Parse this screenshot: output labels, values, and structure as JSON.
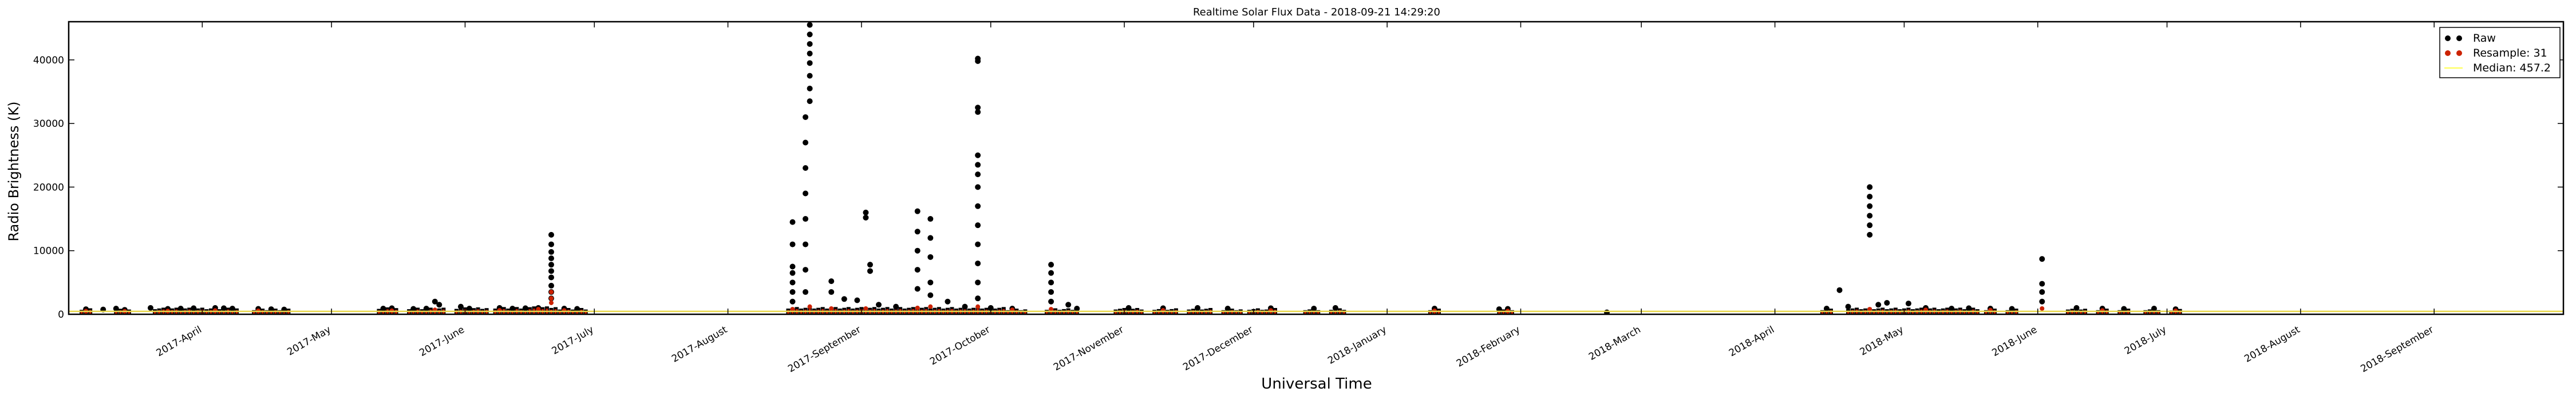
{
  "chart_data": {
    "type": "scatter",
    "title": "Realtime Solar Flux Data - 2018-09-21 14:29:20",
    "xlabel": "Universal Time",
    "ylabel": "Radio Brightness (K)",
    "xlim": [
      "2017-03-01",
      "2018-10-01"
    ],
    "ylim": [
      0,
      46000
    ],
    "y_ticks": [
      0,
      10000,
      20000,
      30000,
      40000
    ],
    "x_ticks": [
      {
        "date": "2017-04-01",
        "label": "2017-April"
      },
      {
        "date": "2017-05-01",
        "label": "2017-May"
      },
      {
        "date": "2017-06-01",
        "label": "2017-June"
      },
      {
        "date": "2017-07-01",
        "label": "2017-July"
      },
      {
        "date": "2017-08-01",
        "label": "2017-August"
      },
      {
        "date": "2017-09-01",
        "label": "2017-September"
      },
      {
        "date": "2017-10-01",
        "label": "2017-October"
      },
      {
        "date": "2017-11-01",
        "label": "2017-November"
      },
      {
        "date": "2017-12-01",
        "label": "2017-December"
      },
      {
        "date": "2018-01-01",
        "label": "2018-January"
      },
      {
        "date": "2018-02-01",
        "label": "2018-February"
      },
      {
        "date": "2018-03-01",
        "label": "2018-March"
      },
      {
        "date": "2018-04-01",
        "label": "2018-April"
      },
      {
        "date": "2018-05-01",
        "label": "2018-May"
      },
      {
        "date": "2018-06-01",
        "label": "2018-June"
      },
      {
        "date": "2018-07-01",
        "label": "2018-July"
      },
      {
        "date": "2018-08-01",
        "label": "2018-August"
      },
      {
        "date": "2018-09-01",
        "label": "2018-September"
      }
    ],
    "legend": {
      "location": "top-right",
      "entries": [
        {
          "label": "Raw",
          "color": "#000000"
        },
        {
          "label": "Resample: 31",
          "color": "#cc2200"
        },
        {
          "label": "Median: 457.2",
          "color": "#ffff66"
        }
      ]
    },
    "median": 457.2,
    "series": [
      {
        "name": "Raw",
        "color": "#000000",
        "marker": "dot",
        "points": [
          [
            "2017-03-05",
            800
          ],
          [
            "2017-03-09",
            750
          ],
          [
            "2017-03-12",
            900
          ],
          [
            "2017-03-14",
            700
          ],
          [
            "2017-03-20",
            1000
          ],
          [
            "2017-03-24",
            850
          ],
          [
            "2017-03-27",
            900
          ],
          [
            "2017-03-30",
            950
          ],
          [
            "2017-04-04",
            1000
          ],
          [
            "2017-04-06",
            950
          ],
          [
            "2017-04-08",
            900
          ],
          [
            "2017-04-14",
            850
          ],
          [
            "2017-04-17",
            800
          ],
          [
            "2017-04-20",
            750
          ],
          [
            "2017-05-13",
            900
          ],
          [
            "2017-05-15",
            950
          ],
          [
            "2017-05-20",
            850
          ],
          [
            "2017-05-23",
            900
          ],
          [
            "2017-05-25",
            2000
          ],
          [
            "2017-05-26",
            1500
          ],
          [
            "2017-05-31",
            1200
          ],
          [
            "2017-06-02",
            900
          ],
          [
            "2017-06-09",
            1000
          ],
          [
            "2017-06-12",
            900
          ],
          [
            "2017-06-15",
            950
          ],
          [
            "2017-06-18",
            1000
          ],
          [
            "2017-06-21",
            12500
          ],
          [
            "2017-06-21",
            11000
          ],
          [
            "2017-06-21",
            9800
          ],
          [
            "2017-06-21",
            8800
          ],
          [
            "2017-06-21",
            7800
          ],
          [
            "2017-06-21",
            6800
          ],
          [
            "2017-06-21",
            5800
          ],
          [
            "2017-06-21",
            4500
          ],
          [
            "2017-06-21",
            3500
          ],
          [
            "2017-06-21",
            2500
          ],
          [
            "2017-06-24",
            900
          ],
          [
            "2017-06-27",
            850
          ],
          [
            "2017-08-16",
            14500
          ],
          [
            "2017-08-16",
            11000
          ],
          [
            "2017-08-16",
            7500
          ],
          [
            "2017-08-16",
            6500
          ],
          [
            "2017-08-16",
            5000
          ],
          [
            "2017-08-16",
            3500
          ],
          [
            "2017-08-16",
            2000
          ],
          [
            "2017-08-20",
            45500
          ],
          [
            "2017-08-20",
            44000
          ],
          [
            "2017-08-20",
            42500
          ],
          [
            "2017-08-20",
            41000
          ],
          [
            "2017-08-20",
            39500
          ],
          [
            "2017-08-20",
            37500
          ],
          [
            "2017-08-20",
            35500
          ],
          [
            "2017-08-20",
            33500
          ],
          [
            "2017-08-19",
            31000
          ],
          [
            "2017-08-19",
            27000
          ],
          [
            "2017-08-19",
            23000
          ],
          [
            "2017-08-19",
            19000
          ],
          [
            "2017-08-19",
            15000
          ],
          [
            "2017-08-19",
            11000
          ],
          [
            "2017-08-19",
            7000
          ],
          [
            "2017-08-19",
            3500
          ],
          [
            "2017-08-25",
            5200
          ],
          [
            "2017-08-25",
            3500
          ],
          [
            "2017-08-28",
            2400
          ],
          [
            "2017-08-31",
            2200
          ],
          [
            "2017-09-02",
            16000
          ],
          [
            "2017-09-02",
            15200
          ],
          [
            "2017-09-03",
            7800
          ],
          [
            "2017-09-03",
            6800
          ],
          [
            "2017-09-05",
            1500
          ],
          [
            "2017-09-09",
            1200
          ],
          [
            "2017-09-14",
            16200
          ],
          [
            "2017-09-14",
            13000
          ],
          [
            "2017-09-14",
            10000
          ],
          [
            "2017-09-14",
            7000
          ],
          [
            "2017-09-14",
            4000
          ],
          [
            "2017-09-17",
            15000
          ],
          [
            "2017-09-17",
            12000
          ],
          [
            "2017-09-17",
            9000
          ],
          [
            "2017-09-17",
            5000
          ],
          [
            "2017-09-17",
            3000
          ],
          [
            "2017-09-21",
            2000
          ],
          [
            "2017-09-25",
            1200
          ],
          [
            "2017-09-28",
            40200
          ],
          [
            "2017-09-28",
            39800
          ],
          [
            "2017-09-28",
            32500
          ],
          [
            "2017-09-28",
            31800
          ],
          [
            "2017-09-28",
            25000
          ],
          [
            "2017-09-28",
            23500
          ],
          [
            "2017-09-28",
            22000
          ],
          [
            "2017-09-28",
            20000
          ],
          [
            "2017-09-28",
            17000
          ],
          [
            "2017-09-28",
            14000
          ],
          [
            "2017-09-28",
            11000
          ],
          [
            "2017-09-28",
            8000
          ],
          [
            "2017-09-28",
            5000
          ],
          [
            "2017-09-28",
            2500
          ],
          [
            "2017-10-01",
            1000
          ],
          [
            "2017-10-06",
            900
          ],
          [
            "2017-10-15",
            7800
          ],
          [
            "2017-10-15",
            6500
          ],
          [
            "2017-10-15",
            5000
          ],
          [
            "2017-10-15",
            3500
          ],
          [
            "2017-10-15",
            2000
          ],
          [
            "2017-10-19",
            1500
          ],
          [
            "2017-10-21",
            900
          ],
          [
            "2017-11-02",
            1000
          ],
          [
            "2017-11-10",
            950
          ],
          [
            "2017-11-18",
            1000
          ],
          [
            "2017-11-25",
            900
          ],
          [
            "2017-12-05",
            950
          ],
          [
            "2017-12-15",
            900
          ],
          [
            "2017-12-20",
            1000
          ],
          [
            "2018-01-12",
            900
          ],
          [
            "2018-01-27",
            800
          ],
          [
            "2018-01-29",
            850
          ],
          [
            "2018-02-21",
            300
          ],
          [
            "2018-04-13",
            900
          ],
          [
            "2018-04-16",
            3800
          ],
          [
            "2018-04-18",
            1200
          ],
          [
            "2018-04-23",
            20000
          ],
          [
            "2018-04-23",
            18500
          ],
          [
            "2018-04-23",
            17000
          ],
          [
            "2018-04-23",
            15500
          ],
          [
            "2018-04-23",
            14000
          ],
          [
            "2018-04-23",
            12500
          ],
          [
            "2018-04-25",
            1500
          ],
          [
            "2018-04-27",
            1800
          ],
          [
            "2018-05-02",
            1700
          ],
          [
            "2018-05-06",
            1000
          ],
          [
            "2018-05-12",
            900
          ],
          [
            "2018-05-16",
            950
          ],
          [
            "2018-05-21",
            900
          ],
          [
            "2018-05-26",
            850
          ],
          [
            "2018-06-02",
            8700
          ],
          [
            "2018-06-02",
            4800
          ],
          [
            "2018-06-02",
            3500
          ],
          [
            "2018-06-02",
            2000
          ],
          [
            "2018-06-10",
            1000
          ],
          [
            "2018-06-16",
            900
          ],
          [
            "2018-06-21",
            850
          ],
          [
            "2018-06-28",
            900
          ],
          [
            "2018-07-03",
            800
          ]
        ]
      },
      {
        "name": "Resample: 31",
        "color": "#cc2200",
        "marker": "dot",
        "points": [
          [
            "2017-03-05",
            500
          ],
          [
            "2017-03-14",
            480
          ],
          [
            "2017-03-24",
            520
          ],
          [
            "2017-04-04",
            600
          ],
          [
            "2017-04-14",
            550
          ],
          [
            "2017-05-15",
            560
          ],
          [
            "2017-05-25",
            700
          ],
          [
            "2017-06-09",
            620
          ],
          [
            "2017-06-18",
            800
          ],
          [
            "2017-06-21",
            3500
          ],
          [
            "2017-06-21",
            2500
          ],
          [
            "2017-06-21",
            1800
          ],
          [
            "2017-06-24",
            600
          ],
          [
            "2017-08-16",
            800
          ],
          [
            "2017-08-20",
            1200
          ],
          [
            "2017-08-25",
            900
          ],
          [
            "2017-09-02",
            900
          ],
          [
            "2017-09-14",
            1000
          ],
          [
            "2017-09-17",
            1200
          ],
          [
            "2017-09-28",
            1200
          ],
          [
            "2017-10-06",
            700
          ],
          [
            "2017-10-15",
            800
          ],
          [
            "2017-11-10",
            620
          ],
          [
            "2017-12-05",
            600
          ],
          [
            "2018-01-12",
            550
          ],
          [
            "2018-01-29",
            520
          ],
          [
            "2018-04-23",
            800
          ],
          [
            "2018-05-06",
            700
          ],
          [
            "2018-05-21",
            650
          ],
          [
            "2018-06-02",
            900
          ],
          [
            "2018-06-16",
            600
          ],
          [
            "2018-07-03",
            550
          ]
        ]
      }
    ],
    "bursts": [
      {
        "start": "2017-03-04",
        "end": "2017-03-06",
        "value": 700
      },
      {
        "start": "2017-03-12",
        "end": "2017-03-15",
        "value": 750
      },
      {
        "start": "2017-03-21",
        "end": "2017-04-09",
        "value": 800
      },
      {
        "start": "2017-04-13",
        "end": "2017-04-21",
        "value": 650
      },
      {
        "start": "2017-05-12",
        "end": "2017-05-16",
        "value": 850
      },
      {
        "start": "2017-05-19",
        "end": "2017-05-27",
        "value": 800
      },
      {
        "start": "2017-05-30",
        "end": "2017-06-06",
        "value": 850
      },
      {
        "start": "2017-06-08",
        "end": "2017-06-14",
        "value": 900
      },
      {
        "start": "2017-06-15",
        "end": "2017-06-22",
        "value": 1000
      },
      {
        "start": "2017-06-23",
        "end": "2017-06-29",
        "value": 750
      },
      {
        "start": "2017-08-15",
        "end": "2017-10-04",
        "value": 900
      },
      {
        "start": "2017-10-05",
        "end": "2017-10-09",
        "value": 650
      },
      {
        "start": "2017-10-14",
        "end": "2017-10-21",
        "value": 700
      },
      {
        "start": "2017-10-30",
        "end": "2017-11-05",
        "value": 750
      },
      {
        "start": "2017-11-08",
        "end": "2017-11-13",
        "value": 700
      },
      {
        "start": "2017-11-16",
        "end": "2017-11-21",
        "value": 750
      },
      {
        "start": "2017-11-24",
        "end": "2017-11-28",
        "value": 650
      },
      {
        "start": "2017-11-30",
        "end": "2017-12-03",
        "value": 700
      },
      {
        "start": "2017-12-04",
        "end": "2017-12-06",
        "value": 750
      },
      {
        "start": "2017-12-13",
        "end": "2017-12-16",
        "value": 650
      },
      {
        "start": "2017-12-19",
        "end": "2017-12-22",
        "value": 700
      },
      {
        "start": "2018-01-11",
        "end": "2018-01-13",
        "value": 650
      },
      {
        "start": "2018-01-27",
        "end": "2018-01-30",
        "value": 650
      },
      {
        "start": "2018-04-12",
        "end": "2018-04-14",
        "value": 650
      },
      {
        "start": "2018-04-18",
        "end": "2018-05-18",
        "value": 800
      },
      {
        "start": "2018-05-20",
        "end": "2018-05-22",
        "value": 650
      },
      {
        "start": "2018-05-25",
        "end": "2018-05-27",
        "value": 650
      },
      {
        "start": "2018-06-08",
        "end": "2018-06-12",
        "value": 750
      },
      {
        "start": "2018-06-15",
        "end": "2018-06-17",
        "value": 650
      },
      {
        "start": "2018-06-20",
        "end": "2018-06-22",
        "value": 650
      },
      {
        "start": "2018-06-26",
        "end": "2018-06-29",
        "value": 650
      },
      {
        "start": "2018-07-02",
        "end": "2018-07-04",
        "value": 600
      }
    ]
  }
}
